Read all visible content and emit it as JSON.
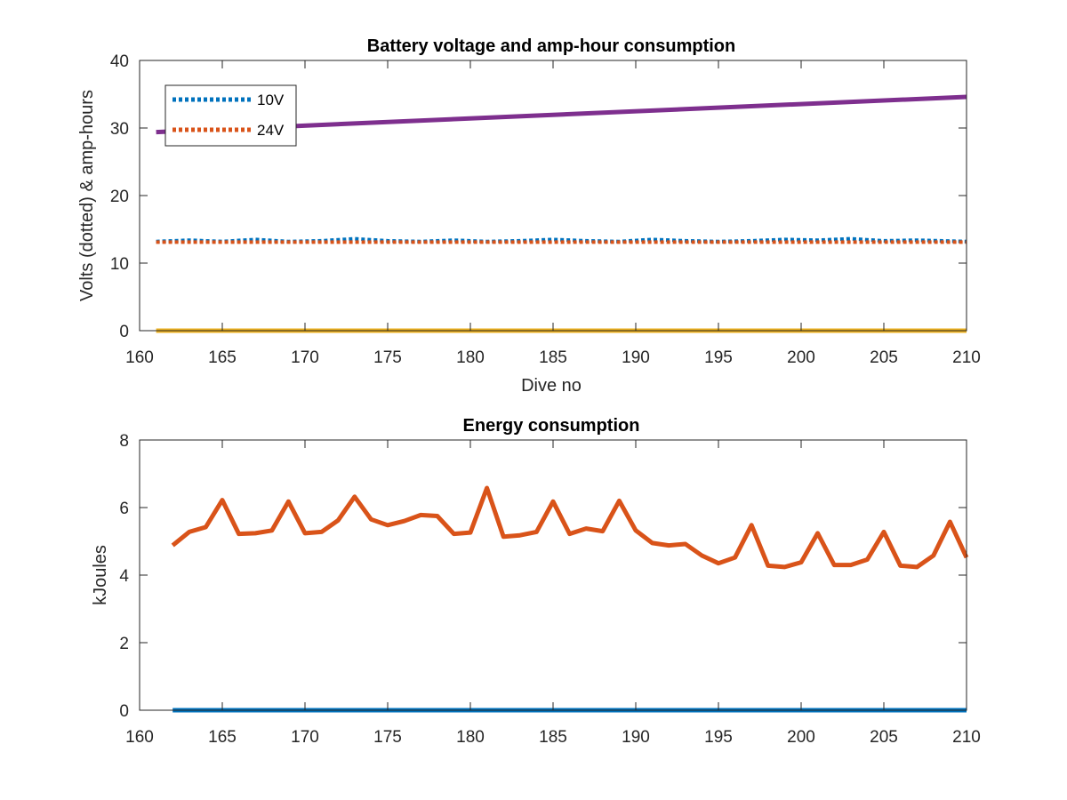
{
  "colors": {
    "blue": "#0072BD",
    "orange": "#D95319",
    "yellow": "#EDB120",
    "purple": "#7E2F8E",
    "axis": "#262626"
  },
  "chart_data": [
    {
      "type": "line",
      "title": "Battery voltage and amp-hour consumption",
      "xlabel": "Dive no",
      "ylabel": "Volts (dotted) & amp-hours",
      "xlim": [
        160,
        210
      ],
      "ylim": [
        0,
        40
      ],
      "xticks": [
        160,
        165,
        170,
        175,
        180,
        185,
        190,
        195,
        200,
        205,
        210
      ],
      "yticks": [
        0,
        10,
        20,
        30,
        40
      ],
      "legend": {
        "location": "top-left",
        "entries": [
          "10V",
          "24V"
        ]
      },
      "series": [
        {
          "name": "10V",
          "style": "dotted",
          "color": "#0072BD",
          "x": [
            161,
            163,
            165,
            167,
            169,
            171,
            173,
            175,
            177,
            179,
            181,
            183,
            185,
            187,
            189,
            191,
            193,
            195,
            197,
            199,
            201,
            203,
            205,
            207,
            210
          ],
          "y": [
            13.2,
            13.4,
            13.2,
            13.5,
            13.2,
            13.3,
            13.6,
            13.3,
            13.2,
            13.4,
            13.2,
            13.3,
            13.5,
            13.3,
            13.2,
            13.5,
            13.3,
            13.2,
            13.3,
            13.5,
            13.4,
            13.6,
            13.3,
            13.4,
            13.2
          ]
        },
        {
          "style": "dotted",
          "color": "#D95319",
          "x": [
            161,
            210
          ],
          "y": [
            13.1,
            13.1
          ]
        },
        {
          "style": "solid",
          "color": "#EDB120",
          "x": [
            161,
            210
          ],
          "y": [
            0,
            0
          ]
        },
        {
          "style": "solid",
          "color": "#7E2F8E",
          "x": [
            161,
            210
          ],
          "y": [
            29.4,
            34.6
          ]
        }
      ]
    },
    {
      "type": "line",
      "title": "Energy consumption",
      "xlabel": "",
      "ylabel": "kJoules",
      "xlim": [
        160,
        210
      ],
      "ylim": [
        0,
        8
      ],
      "xticks": [
        160,
        165,
        170,
        175,
        180,
        185,
        190,
        195,
        200,
        205,
        210
      ],
      "yticks": [
        0,
        2,
        4,
        6,
        8
      ],
      "series": [
        {
          "style": "solid",
          "color": "#0072BD",
          "x": [
            162,
            210
          ],
          "y": [
            0,
            0
          ]
        },
        {
          "style": "solid",
          "color": "#D95319",
          "x": [
            162,
            163,
            164,
            165,
            166,
            167,
            168,
            169,
            170,
            171,
            172,
            173,
            174,
            175,
            176,
            177,
            178,
            179,
            180,
            181,
            182,
            183,
            184,
            185,
            186,
            187,
            188,
            189,
            190,
            191,
            192,
            193,
            194,
            195,
            196,
            197,
            198,
            199,
            200,
            201,
            202,
            203,
            204,
            205,
            206,
            207,
            208,
            209,
            210
          ],
          "y": [
            4.88,
            5.28,
            5.42,
            6.22,
            5.22,
            5.24,
            5.32,
            6.18,
            5.24,
            5.28,
            5.62,
            6.32,
            5.65,
            5.48,
            5.6,
            5.78,
            5.75,
            5.22,
            5.26,
            6.58,
            5.14,
            5.18,
            5.28,
            6.18,
            5.22,
            5.38,
            5.3,
            6.2,
            5.32,
            4.95,
            4.88,
            4.92,
            4.58,
            4.35,
            4.52,
            5.48,
            4.28,
            4.24,
            4.38,
            5.24,
            4.3,
            4.3,
            4.46,
            5.28,
            4.28,
            4.24,
            4.58,
            5.58,
            4.52
          ]
        }
      ]
    }
  ]
}
